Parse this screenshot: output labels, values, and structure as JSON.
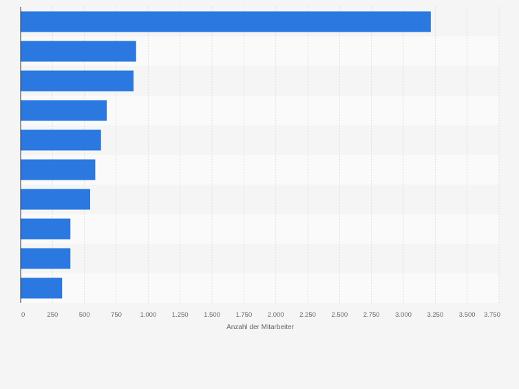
{
  "chart_data": {
    "type": "bar",
    "orientation": "horizontal",
    "title": "",
    "xlabel": "Anzahl der Mitarbeiter",
    "ylabel": "",
    "values": [
      3215,
      905,
      885,
      675,
      630,
      585,
      545,
      390,
      390,
      325
    ],
    "xlim": [
      0,
      3750
    ],
    "xticks": [
      0,
      250,
      500,
      750,
      1000,
      1250,
      1500,
      1750,
      2000,
      2250,
      2500,
      2750,
      3000,
      3250,
      3500,
      3750
    ],
    "xtick_labels": [
      "0",
      "250",
      "500",
      "750",
      "1.000",
      "1.250",
      "1.500",
      "1.750",
      "2.000",
      "2.250",
      "2.500",
      "2.750",
      "3.000",
      "3.250",
      "3.500",
      "3.750"
    ],
    "grid": true,
    "bar_color": "#2a78e0"
  }
}
